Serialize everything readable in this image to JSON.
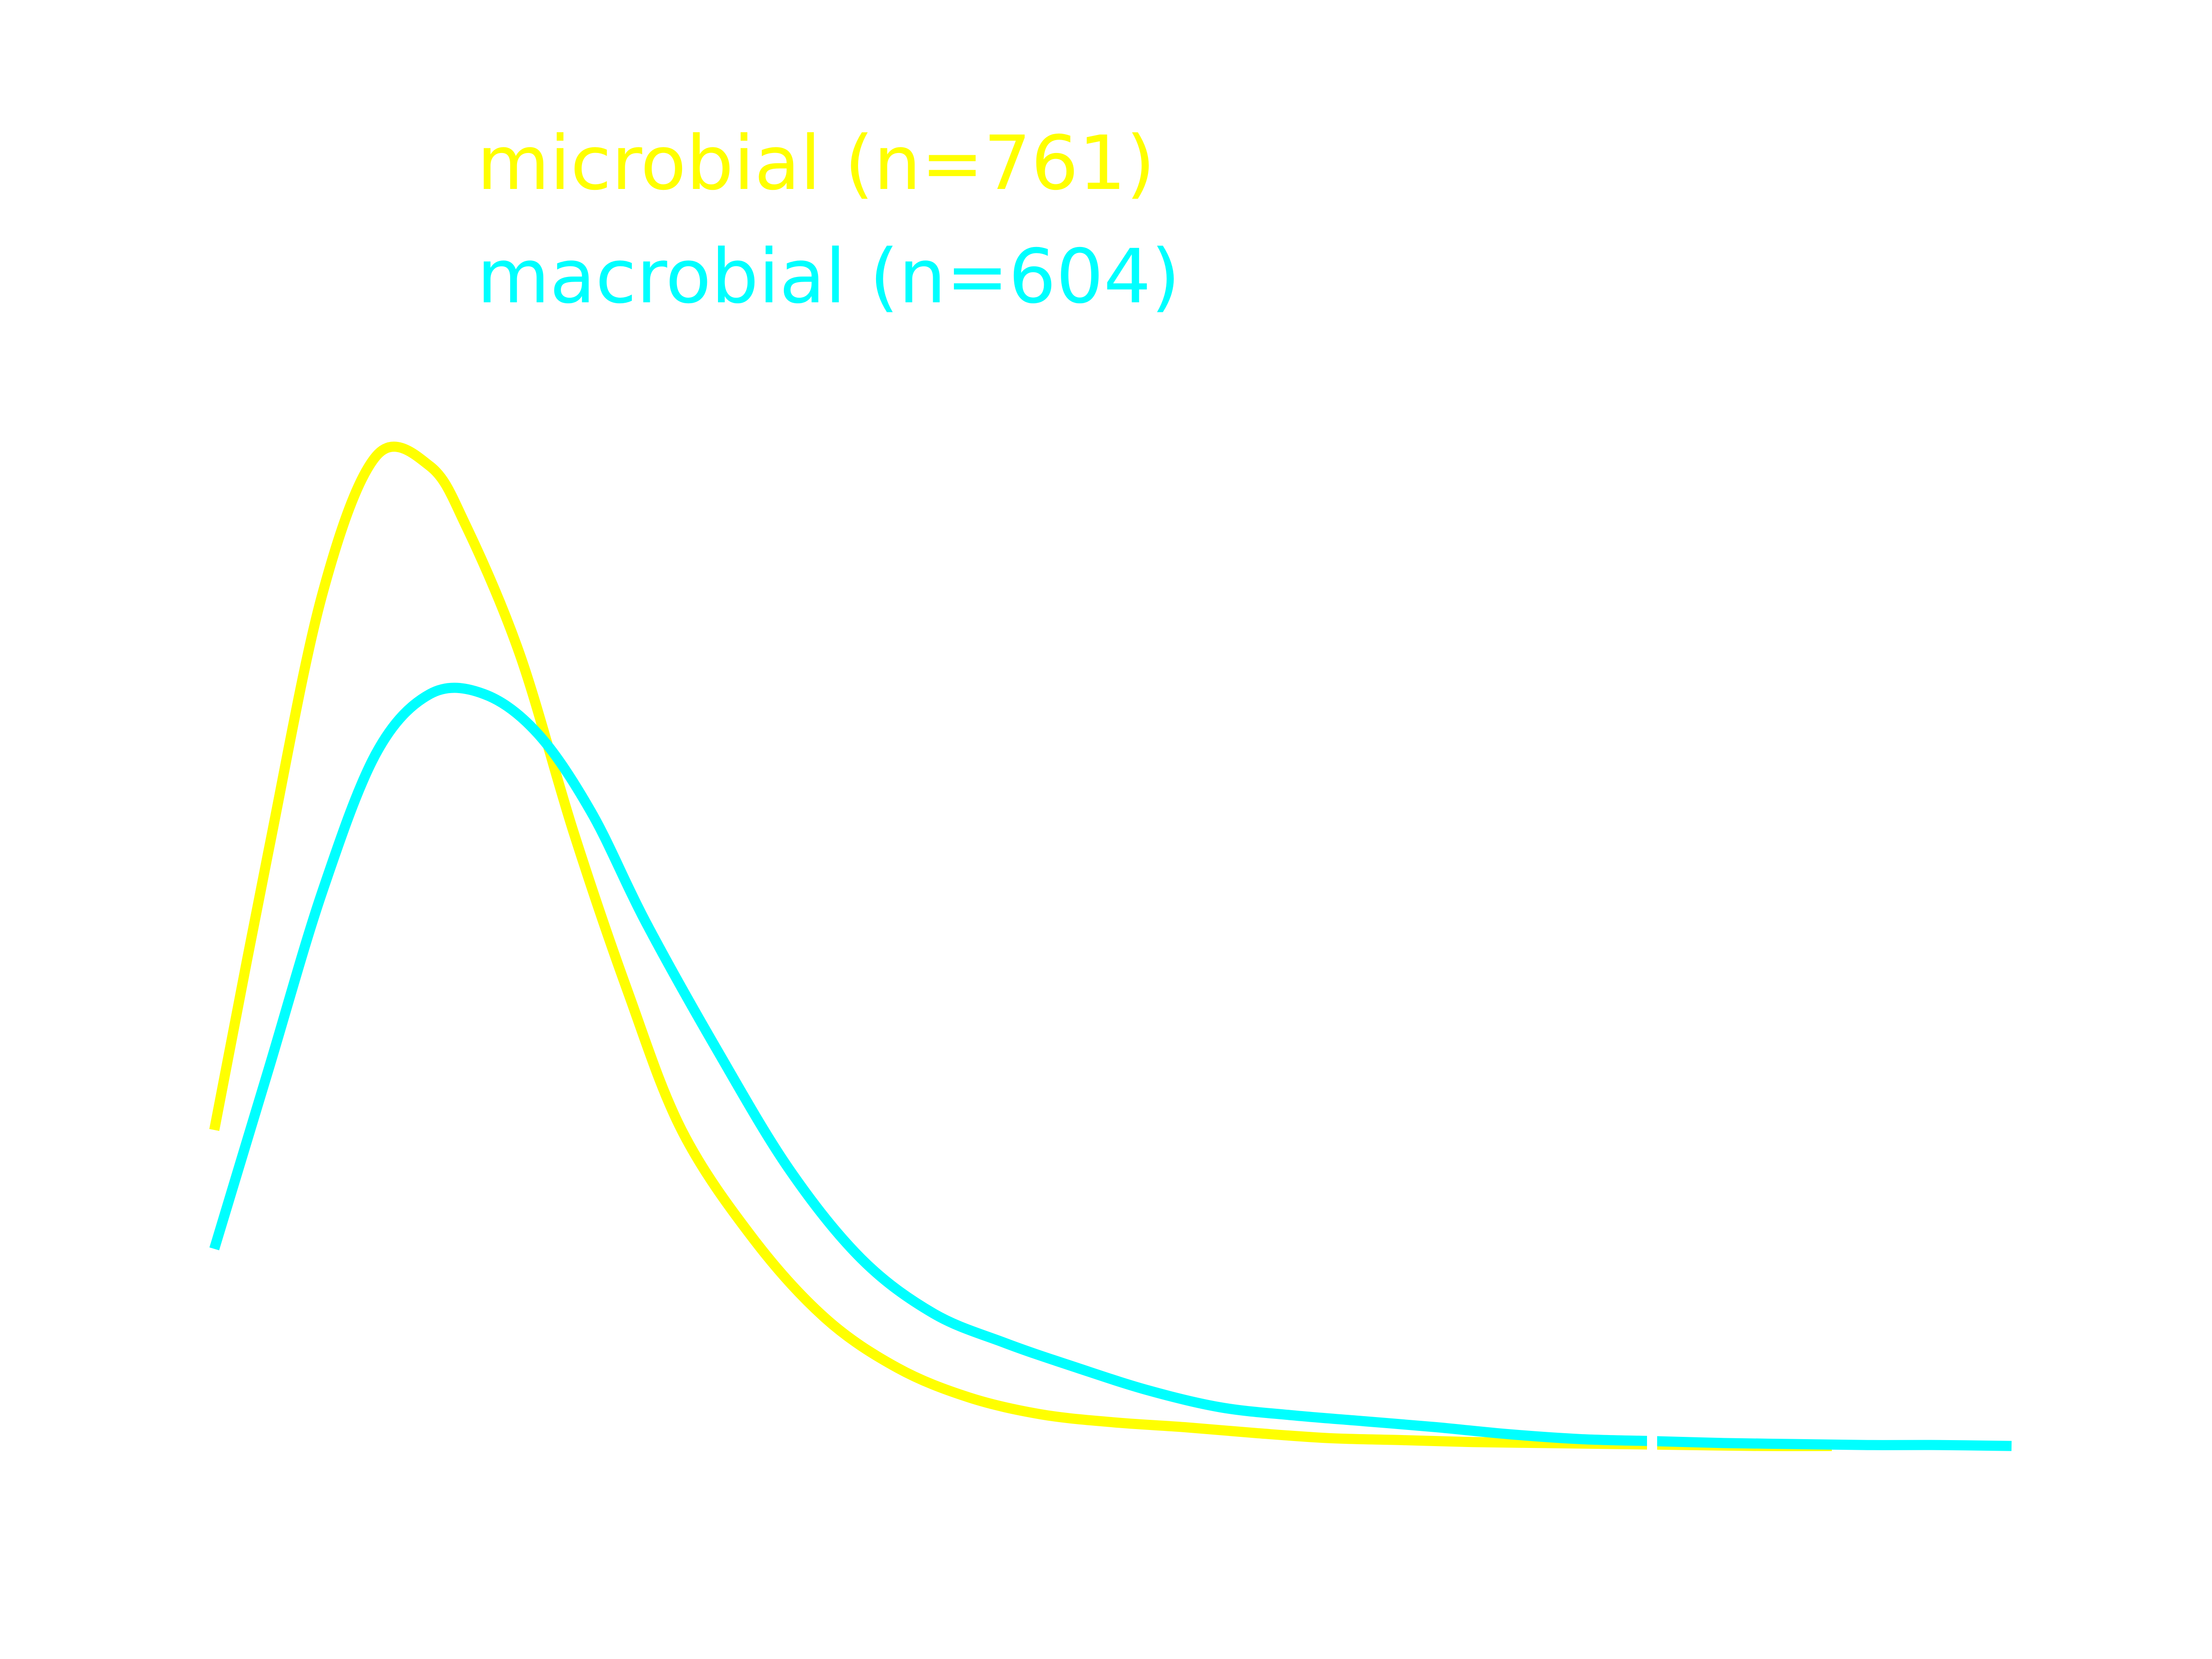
{
  "chart_data": {
    "type": "line",
    "title": "",
    "xlabel": "",
    "ylabel": "",
    "grid": false,
    "legend_position": "top-left",
    "xlim": [
      0,
      1
    ],
    "ylim": [
      0,
      1
    ],
    "series": [
      {
        "name": "microbial (n=761)",
        "color": "#ffff00",
        "x": [
          0.0,
          0.03,
          0.06,
          0.09,
          0.12,
          0.14,
          0.17,
          0.2,
          0.23,
          0.26,
          0.3,
          0.34,
          0.38,
          0.42,
          0.46,
          0.5,
          0.54,
          0.58,
          0.62,
          0.66,
          0.7,
          0.74,
          0.78,
          0.82,
          0.86,
          0.9
        ],
        "y": [
          0.32,
          0.6,
          0.86,
          1.0,
          0.99,
          0.93,
          0.8,
          0.62,
          0.46,
          0.32,
          0.21,
          0.13,
          0.08,
          0.05,
          0.033,
          0.025,
          0.02,
          0.014,
          0.009,
          0.007,
          0.005,
          0.004,
          0.003,
          0.002,
          0.001,
          0.001
        ]
      },
      {
        "name": "macrobial (n=604)",
        "color": "#00ffff",
        "x": [
          0.0,
          0.03,
          0.06,
          0.09,
          0.12,
          0.15,
          0.18,
          0.21,
          0.24,
          0.28,
          0.32,
          0.36,
          0.4,
          0.44,
          0.48,
          0.52,
          0.56,
          0.6,
          0.64,
          0.68,
          0.72,
          0.76,
          0.8,
          0.84,
          0.88,
          0.92,
          0.96,
          1.0
        ],
        "y": [
          0.2,
          0.38,
          0.56,
          0.7,
          0.76,
          0.76,
          0.72,
          0.64,
          0.53,
          0.4,
          0.28,
          0.19,
          0.135,
          0.105,
          0.08,
          0.057,
          0.04,
          0.032,
          0.026,
          0.02,
          0.013,
          0.008,
          0.006,
          0.004,
          0.003,
          0.002,
          0.002,
          0.001
        ]
      }
    ],
    "marker": {
      "x": 0.8,
      "color": "#ffffff"
    }
  },
  "legend": {
    "items": [
      {
        "label": "microbial (n=761)",
        "color": "#ffff00"
      },
      {
        "label": "macrobial (n=604)",
        "color": "#00ffff"
      }
    ]
  }
}
